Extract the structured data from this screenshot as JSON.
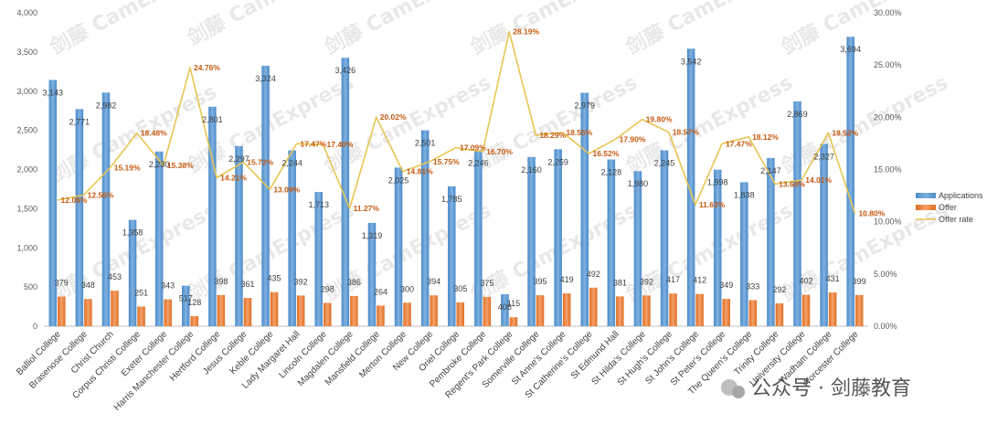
{
  "chart_data": {
    "type": "bar",
    "categories": [
      "Balliol College",
      "Brasenose College",
      "Christ Church",
      "Corpus Christi College",
      "Exeter College",
      "Harris Manchester College",
      "Hertford College",
      "Jesus College",
      "Keble College",
      "Lady Margaret Hall",
      "Lincoln College",
      "Magdalen College",
      "Mansfield College",
      "Merton College",
      "New College",
      "Oriel College",
      "Pembroke College",
      "Regent's Park College",
      "Somerville College",
      "St Anne's College",
      "St Catherine's College",
      "St Edmund Hall",
      "St Hilda's College",
      "St Hugh's College",
      "St John's College",
      "St Peter's College",
      "The Queen's College",
      "Trinity College",
      "University College",
      "Wadham College",
      "Worcester College"
    ],
    "series": [
      {
        "name": "Applications",
        "type": "bar",
        "axis": "left",
        "color": "#5b9bd5",
        "values": [
          3143,
          2771,
          2982,
          1358,
          2230,
          517,
          2801,
          2297,
          3324,
          2244,
          1713,
          3426,
          1319,
          2025,
          2501,
          1785,
          2246,
          408,
          2160,
          2259,
          2979,
          2128,
          1980,
          2245,
          3542,
          1998,
          1838,
          2147,
          2869,
          2327,
          3694
        ],
        "labels": [
          "3,143",
          "2,771",
          "2,982",
          "1,358",
          "2,230",
          "517",
          "2,801",
          "2,297",
          "3,324",
          "2,244",
          "1,713",
          "3,426",
          "1,319",
          "2,025",
          "2,501",
          "1,785",
          "2,246",
          "408",
          "2,160",
          "2,259",
          "2,979",
          "2,128",
          "1,980",
          "2,245",
          "3,542",
          "1,998",
          "1,838",
          "2,147",
          "2,869",
          "2,327",
          "3,694"
        ]
      },
      {
        "name": "Offer",
        "type": "bar",
        "axis": "left",
        "color": "#ed7d31",
        "values": [
          379,
          348,
          453,
          251,
          343,
          128,
          398,
          361,
          435,
          392,
          298,
          386,
          264,
          300,
          394,
          305,
          375,
          115,
          395,
          419,
          492,
          381,
          392,
          417,
          412,
          349,
          333,
          292,
          402,
          431,
          399
        ],
        "labels": [
          "379",
          "348",
          "453",
          "251",
          "343",
          "128",
          "398",
          "361",
          "435",
          "392",
          "298",
          "386",
          "264",
          "300",
          "394",
          "305",
          "375",
          "115",
          "395",
          "419",
          "492",
          "381",
          "392",
          "417",
          "412",
          "349",
          "333",
          "292",
          "402",
          "431",
          "399"
        ]
      },
      {
        "name": "Offer rate",
        "type": "line",
        "axis": "right",
        "color": "#e8c552",
        "values": [
          12.06,
          12.56,
          15.19,
          18.48,
          15.38,
          24.76,
          14.21,
          15.72,
          13.09,
          17.47,
          17.4,
          11.27,
          20.02,
          14.81,
          15.75,
          17.09,
          16.7,
          28.19,
          18.29,
          18.55,
          16.52,
          17.9,
          19.8,
          18.57,
          11.63,
          17.47,
          18.12,
          13.6,
          14.01,
          18.52,
          10.8
        ],
        "labels": [
          "12.06%",
          "12.56%",
          "15.19%",
          "18.48%",
          "15.38%",
          "24.76%",
          "14.21%",
          "15.72%",
          "13.09%",
          "17.47%",
          "17.40%",
          "11.27%",
          "20.02%",
          "14.81%",
          "15.75%",
          "17.09%",
          "16.70%",
          "28.19%",
          "18.29%",
          "18.55%",
          "16.52%",
          "17.90%",
          "19.80%",
          "18.57%",
          "11.63%",
          "17.47%",
          "18.12%",
          "13.60%",
          "14.01%",
          "18.52%",
          "10.80%"
        ]
      }
    ],
    "ylim": [
      0,
      4000
    ],
    "y_ticks": [
      "0",
      "500",
      "1,000",
      "1,500",
      "2,000",
      "2,500",
      "3,000",
      "3,500",
      "4,000"
    ],
    "y2lim": [
      0,
      30
    ],
    "y2_ticks": [
      "0.00%",
      "5.00%",
      "10.00%",
      "15.00%",
      "20.00%",
      "25.00%",
      "30.00%"
    ],
    "legend_position": "right",
    "grid": false,
    "title": "",
    "xlabel": "",
    "ylabel": ""
  },
  "watermark": {
    "brand_cn": "剑藤",
    "brand_en": "CamExpress"
  },
  "footer": {
    "text": "公众号 · 剑藤教育"
  }
}
